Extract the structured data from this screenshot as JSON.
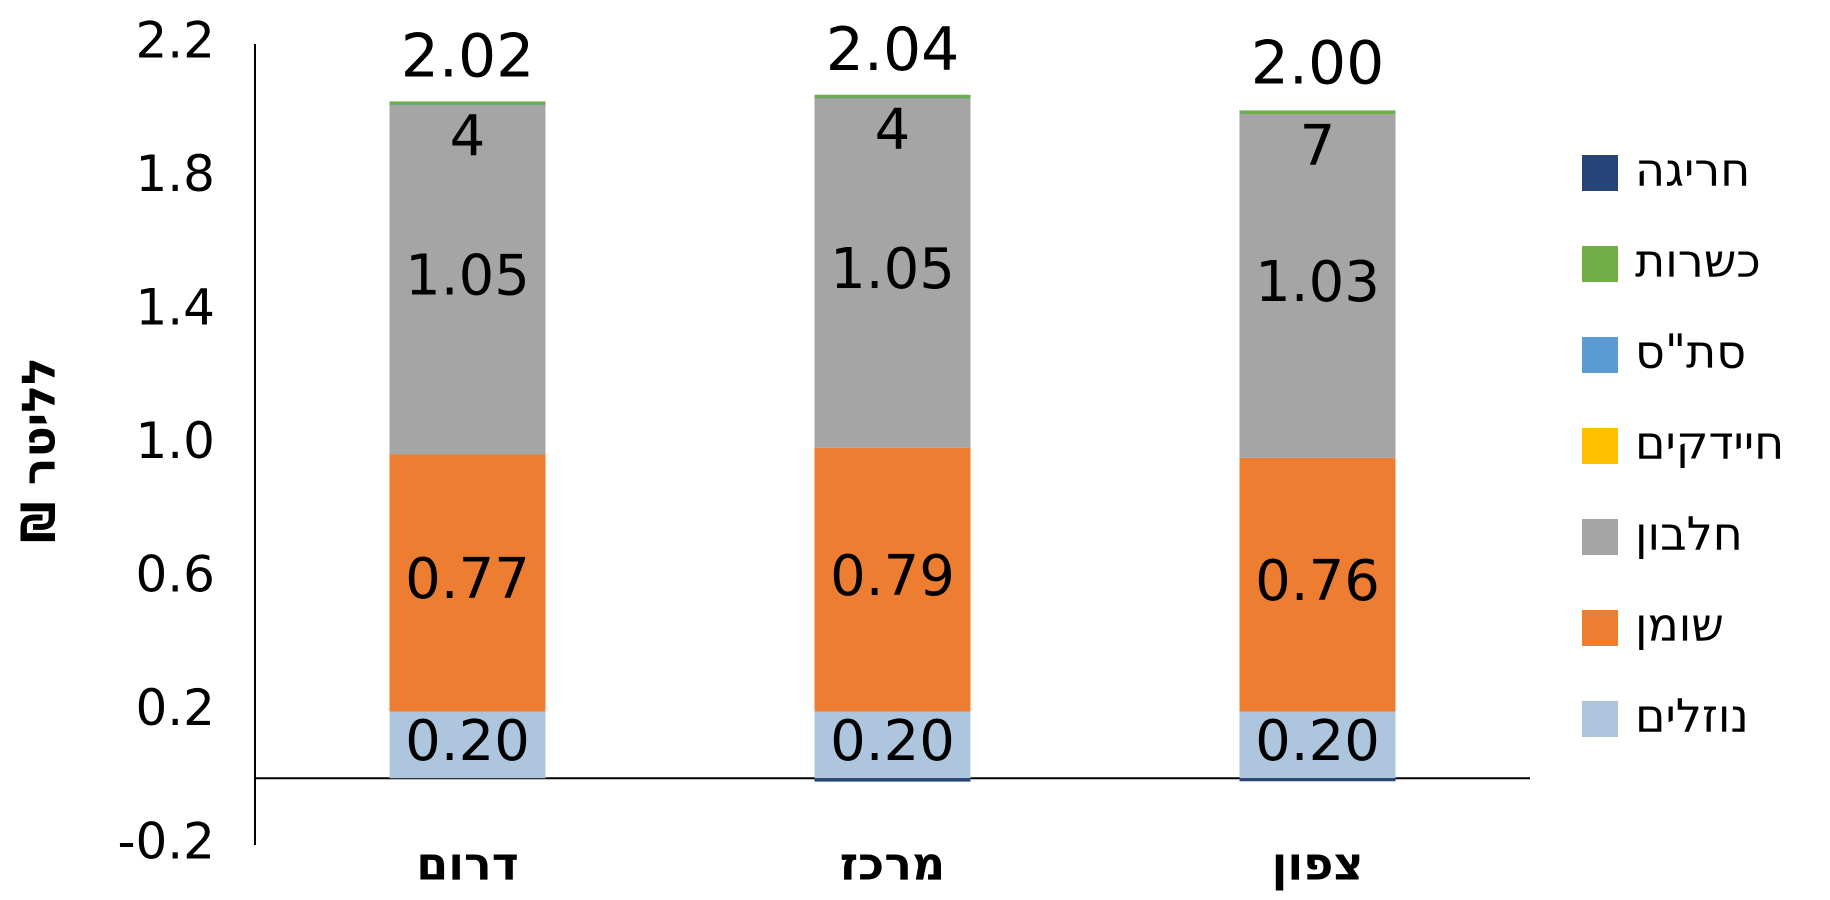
{
  "chart_data": {
    "type": "stacked_bar",
    "y_label": "₪ לליטר",
    "categories": [
      "דרום",
      "מרכז",
      "צפון"
    ],
    "series": [
      {
        "name": "נוזלים",
        "color": "#adc6de",
        "values": [
          0.2,
          0.2,
          0.2
        ],
        "value_labels": [
          "0.20",
          "0.20",
          "0.20"
        ]
      },
      {
        "name": "שומן",
        "color": "#ed7d31",
        "values": [
          0.77,
          0.79,
          0.76
        ]
      },
      {
        "name": "חלבון",
        "color": "#a5a5a5",
        "values": [
          1.05,
          1.05,
          1.03
        ]
      },
      {
        "name": "חיידקים",
        "color": "#ffc000",
        "values": [
          0.004,
          0.004,
          0.007
        ],
        "value_labels": [
          "4",
          "4",
          "7"
        ]
      },
      {
        "name": "סת\"ס",
        "color": "#5b9bd5",
        "values": [
          0.001,
          0.001,
          0.001
        ]
      },
      {
        "name": "כשרות",
        "color": "#70ad47",
        "values": [
          0.003,
          0.003,
          0.003
        ]
      },
      {
        "name": "חריגה",
        "color": "#264478",
        "values": [
          0,
          -0.01,
          -0.003
        ]
      }
    ],
    "totals": [
      2.02,
      2.04,
      2.0
    ],
    "total_labels": [
      "2.02",
      "2.04",
      "2.00"
    ],
    "ylim": [
      -0.2,
      2.2
    ],
    "yticks": [
      -0.2,
      0.2,
      0.6,
      {
        "value": 1.0,
        "label": "1.0"
      },
      1.4,
      1.8,
      2.2
    ],
    "legend": "right"
  }
}
